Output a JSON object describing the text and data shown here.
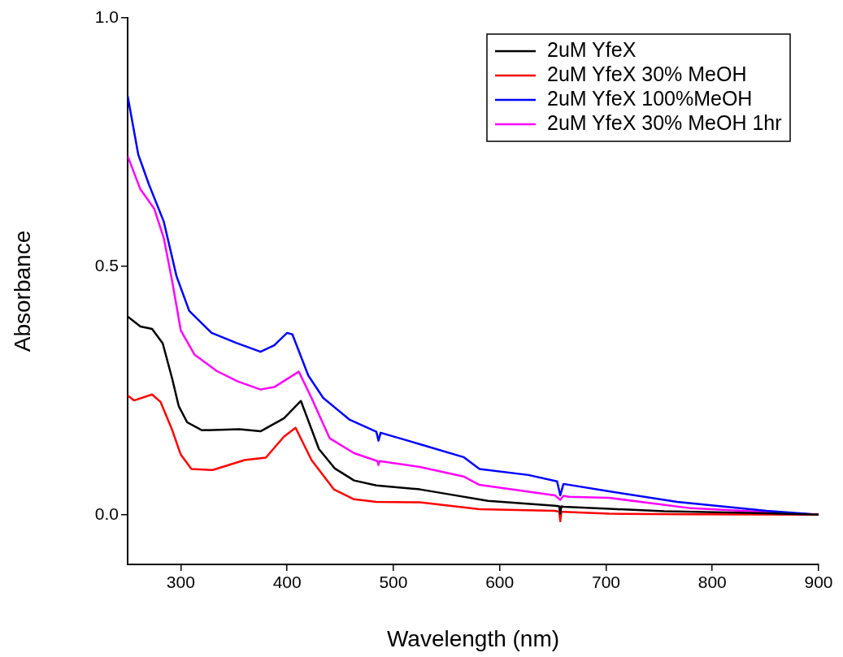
{
  "chart_data": {
    "type": "line",
    "xlabel": "Wavelength (nm)",
    "ylabel": "Absorbance",
    "xlim": [
      250,
      900
    ],
    "ylim": [
      -0.1,
      1.0
    ],
    "xticks": [
      300,
      400,
      500,
      600,
      700,
      800,
      900
    ],
    "yticks": [
      {
        "value": 0,
        "label": "0.0"
      },
      {
        "value": 0.5,
        "label": "0.5"
      },
      {
        "value": 1,
        "label": "1.0"
      }
    ],
    "grid": false,
    "legend": "top right",
    "marker": "none",
    "line_style": "solid",
    "series": [
      {
        "name": "2uM YfeX",
        "color": "#000000",
        "x": [
          250,
          262,
          273,
          283,
          292,
          298,
          306,
          320,
          355,
          375,
          397,
          413,
          430,
          445,
          463,
          484,
          525,
          550,
          589,
          652,
          656,
          657,
          658,
          660,
          703,
          755,
          851,
          900
        ],
        "values": [
          0.399,
          0.379,
          0.374,
          0.345,
          0.273,
          0.219,
          0.186,
          0.17,
          0.172,
          0.168,
          0.194,
          0.229,
          0.132,
          0.093,
          0.069,
          0.059,
          0.051,
          0.042,
          0.028,
          0.018,
          0.017,
          0.002,
          0.017,
          0.016,
          0.012,
          0.007,
          0.003,
          0.0
        ]
      },
      {
        "name": "2uM YfeX 30% MeOH",
        "color": "#ff0000",
        "x": [
          250,
          256,
          273,
          281,
          292,
          300,
          310,
          330,
          360,
          380,
          397,
          408,
          423,
          444,
          463,
          484,
          525,
          581,
          652,
          656,
          657,
          658,
          660,
          703,
          780,
          900
        ],
        "values": [
          0.24,
          0.23,
          0.242,
          0.227,
          0.17,
          0.121,
          0.092,
          0.09,
          0.11,
          0.115,
          0.157,
          0.175,
          0.11,
          0.051,
          0.031,
          0.026,
          0.025,
          0.011,
          0.008,
          0.006,
          -0.013,
          0.006,
          0.006,
          0.002,
          0.001,
          0.0
        ]
      },
      {
        "name": "2uM YfeX 100%MeOH",
        "color": "#0000ff",
        "x": [
          250,
          260,
          270,
          284,
          296,
          308,
          329,
          352,
          375,
          388,
          400,
          405,
          420,
          434,
          459,
          484,
          486,
          488,
          525,
          566,
          581,
          627,
          654,
          657,
          660,
          703,
          767,
          851,
          900
        ],
        "values": [
          0.843,
          0.725,
          0.665,
          0.59,
          0.48,
          0.41,
          0.366,
          0.346,
          0.328,
          0.341,
          0.366,
          0.363,
          0.28,
          0.235,
          0.191,
          0.167,
          0.149,
          0.165,
          0.142,
          0.116,
          0.092,
          0.08,
          0.067,
          0.039,
          0.062,
          0.047,
          0.026,
          0.008,
          0.0
        ]
      },
      {
        "name": "2uM YfeX 30% MeOH 1hr",
        "color": "#ff00ff",
        "x": [
          250,
          262,
          275,
          284,
          292,
          300,
          313,
          334,
          354,
          375,
          388,
          411,
          423,
          440,
          463,
          485,
          486,
          487,
          525,
          566,
          581,
          652,
          657,
          660,
          665,
          703,
          780,
          900
        ],
        "values": [
          0.722,
          0.655,
          0.616,
          0.557,
          0.469,
          0.371,
          0.322,
          0.289,
          0.268,
          0.252,
          0.257,
          0.288,
          0.235,
          0.154,
          0.124,
          0.108,
          0.1,
          0.108,
          0.096,
          0.077,
          0.06,
          0.039,
          0.03,
          0.038,
          0.036,
          0.034,
          0.013,
          0.0
        ]
      }
    ]
  }
}
